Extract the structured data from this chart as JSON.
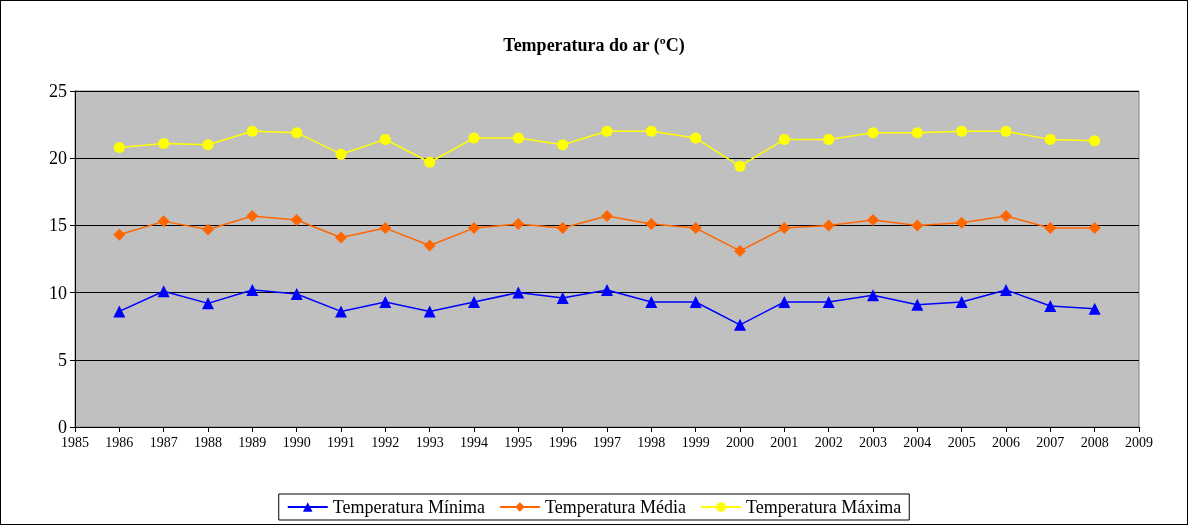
{
  "chart_data": {
    "type": "line",
    "title": "Temperatura do ar (ºC)",
    "x": [
      1986,
      1987,
      1988,
      1989,
      1990,
      1991,
      1992,
      1993,
      1994,
      1995,
      1996,
      1997,
      1998,
      1999,
      2000,
      2001,
      2002,
      2003,
      2004,
      2005,
      2006,
      2007,
      2008
    ],
    "series": [
      {
        "name": "Temperatura Mínima",
        "color": "#0000ff",
        "marker": "triangle",
        "values": [
          8.6,
          10.1,
          9.2,
          10.2,
          9.9,
          8.6,
          9.3,
          8.6,
          9.3,
          10.0,
          9.6,
          10.2,
          9.3,
          9.3,
          7.6,
          9.3,
          9.3,
          9.8,
          9.1,
          9.3,
          10.2,
          9.0,
          8.8
        ]
      },
      {
        "name": "Temperatura Média",
        "color": "#ff6600",
        "marker": "diamond",
        "values": [
          14.3,
          15.3,
          14.7,
          15.7,
          15.4,
          14.1,
          14.8,
          13.5,
          14.8,
          15.1,
          14.8,
          15.7,
          15.1,
          14.8,
          13.1,
          14.8,
          15.0,
          15.4,
          15.0,
          15.2,
          15.7,
          14.8,
          14.8
        ]
      },
      {
        "name": "Temperatura Máxima",
        "color": "#ffff00",
        "marker": "circle",
        "values": [
          20.8,
          21.1,
          21.0,
          22.0,
          21.9,
          20.3,
          21.4,
          19.7,
          21.5,
          21.5,
          21.0,
          22.0,
          22.0,
          21.5,
          19.4,
          21.4,
          21.4,
          21.9,
          21.9,
          22.0,
          22.0,
          21.4,
          21.3
        ]
      }
    ],
    "xlim": [
      1985,
      2009
    ],
    "xticks": [
      1985,
      1986,
      1987,
      1988,
      1989,
      1990,
      1991,
      1992,
      1993,
      1994,
      1995,
      1996,
      1997,
      1998,
      1999,
      2000,
      2001,
      2002,
      2003,
      2004,
      2005,
      2006,
      2007,
      2008,
      2009
    ],
    "ylim": [
      0,
      25
    ],
    "yticks": [
      0,
      5,
      10,
      15,
      20,
      25
    ],
    "grid": "y",
    "legend": "bottom",
    "line_style": "solid"
  }
}
